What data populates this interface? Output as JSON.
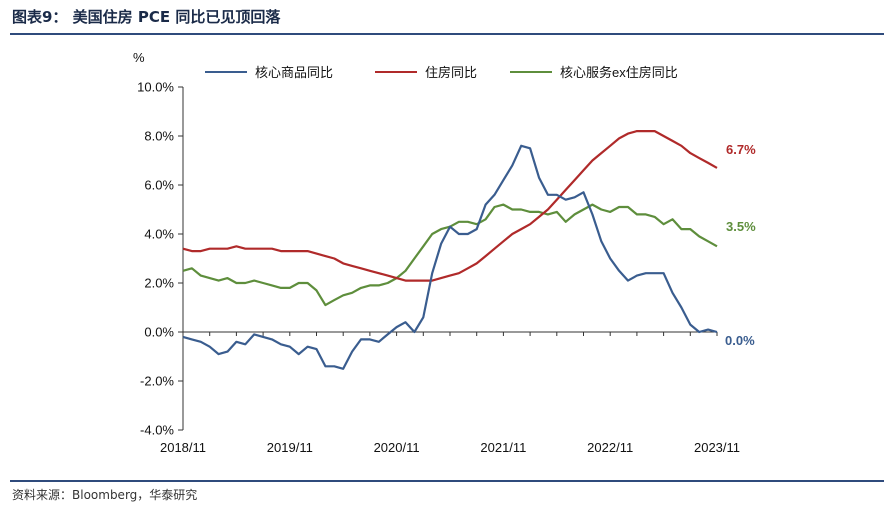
{
  "figure": {
    "title": "图表9：  美国住房 PCE 同比已见顶回落",
    "source": "资料来源：Bloomberg，华泰研究"
  },
  "colors": {
    "core_goods": "#3a5d8f",
    "housing": "#b02a2a",
    "core_services_ex_housing": "#5e8e3c",
    "rule": "#2f4b7c"
  },
  "chart_data": {
    "type": "line",
    "title": "",
    "xlabel": "",
    "ylabel": "%",
    "ylim": [
      -4.0,
      10.0
    ],
    "yticks": [
      -4.0,
      -2.0,
      0.0,
      2.0,
      4.0,
      6.0,
      8.0,
      10.0
    ],
    "ytick_labels": [
      "-4.0%",
      "-2.0%",
      "0.0%",
      "2.0%",
      "4.0%",
      "6.0%",
      "8.0%",
      "10.0%"
    ],
    "xtick_labels": [
      "2018/11",
      "2019/11",
      "2020/11",
      "2021/11",
      "2022/11",
      "2023/11"
    ],
    "x_start": "2018/11",
    "x_end": "2023/11",
    "frequency": "monthly",
    "legend_position": "top",
    "grid": false,
    "series": [
      {
        "name": "核心商品同比",
        "color_key": "core_goods",
        "end_label": "0.0%",
        "values": [
          -0.2,
          -0.3,
          -0.4,
          -0.6,
          -0.9,
          -0.8,
          -0.4,
          -0.5,
          -0.1,
          -0.2,
          -0.3,
          -0.5,
          -0.6,
          -0.9,
          -0.6,
          -0.7,
          -1.4,
          -1.4,
          -1.5,
          -0.8,
          -0.3,
          -0.3,
          -0.4,
          -0.1,
          0.2,
          0.4,
          0.0,
          0.6,
          2.4,
          3.6,
          4.3,
          4.0,
          4.0,
          4.2,
          5.2,
          5.6,
          6.2,
          6.8,
          7.6,
          7.5,
          6.3,
          5.6,
          5.6,
          5.4,
          5.5,
          5.7,
          4.8,
          3.7,
          3.0,
          2.5,
          2.1,
          2.3,
          2.4,
          2.4,
          2.4,
          1.6,
          1.0,
          0.3,
          0.0,
          0.1,
          0.0
        ]
      },
      {
        "name": "住房同比",
        "color_key": "housing",
        "end_label": "6.7%",
        "values": [
          3.4,
          3.3,
          3.3,
          3.4,
          3.4,
          3.4,
          3.5,
          3.4,
          3.4,
          3.4,
          3.4,
          3.3,
          3.3,
          3.3,
          3.3,
          3.2,
          3.1,
          3.0,
          2.8,
          2.7,
          2.6,
          2.5,
          2.4,
          2.3,
          2.2,
          2.1,
          2.1,
          2.1,
          2.1,
          2.2,
          2.3,
          2.4,
          2.6,
          2.8,
          3.1,
          3.4,
          3.7,
          4.0,
          4.2,
          4.4,
          4.7,
          5.0,
          5.4,
          5.8,
          6.2,
          6.6,
          7.0,
          7.3,
          7.6,
          7.9,
          8.1,
          8.2,
          8.2,
          8.2,
          8.0,
          7.8,
          7.6,
          7.3,
          7.1,
          6.9,
          6.7
        ]
      },
      {
        "name": "核心服务ex住房同比",
        "color_key": "core_services_ex_housing",
        "end_label": "3.5%",
        "values": [
          2.5,
          2.6,
          2.3,
          2.2,
          2.1,
          2.2,
          2.0,
          2.0,
          2.1,
          2.0,
          1.9,
          1.8,
          1.8,
          2.0,
          2.0,
          1.7,
          1.1,
          1.3,
          1.5,
          1.6,
          1.8,
          1.9,
          1.9,
          2.0,
          2.2,
          2.5,
          3.0,
          3.5,
          4.0,
          4.2,
          4.3,
          4.5,
          4.5,
          4.4,
          4.6,
          5.1,
          5.2,
          5.0,
          5.0,
          4.9,
          4.9,
          4.8,
          4.9,
          4.5,
          4.8,
          5.0,
          5.2,
          5.0,
          4.9,
          5.1,
          5.1,
          4.8,
          4.8,
          4.7,
          4.4,
          4.6,
          4.2,
          4.2,
          3.9,
          3.7,
          3.5
        ]
      }
    ]
  }
}
